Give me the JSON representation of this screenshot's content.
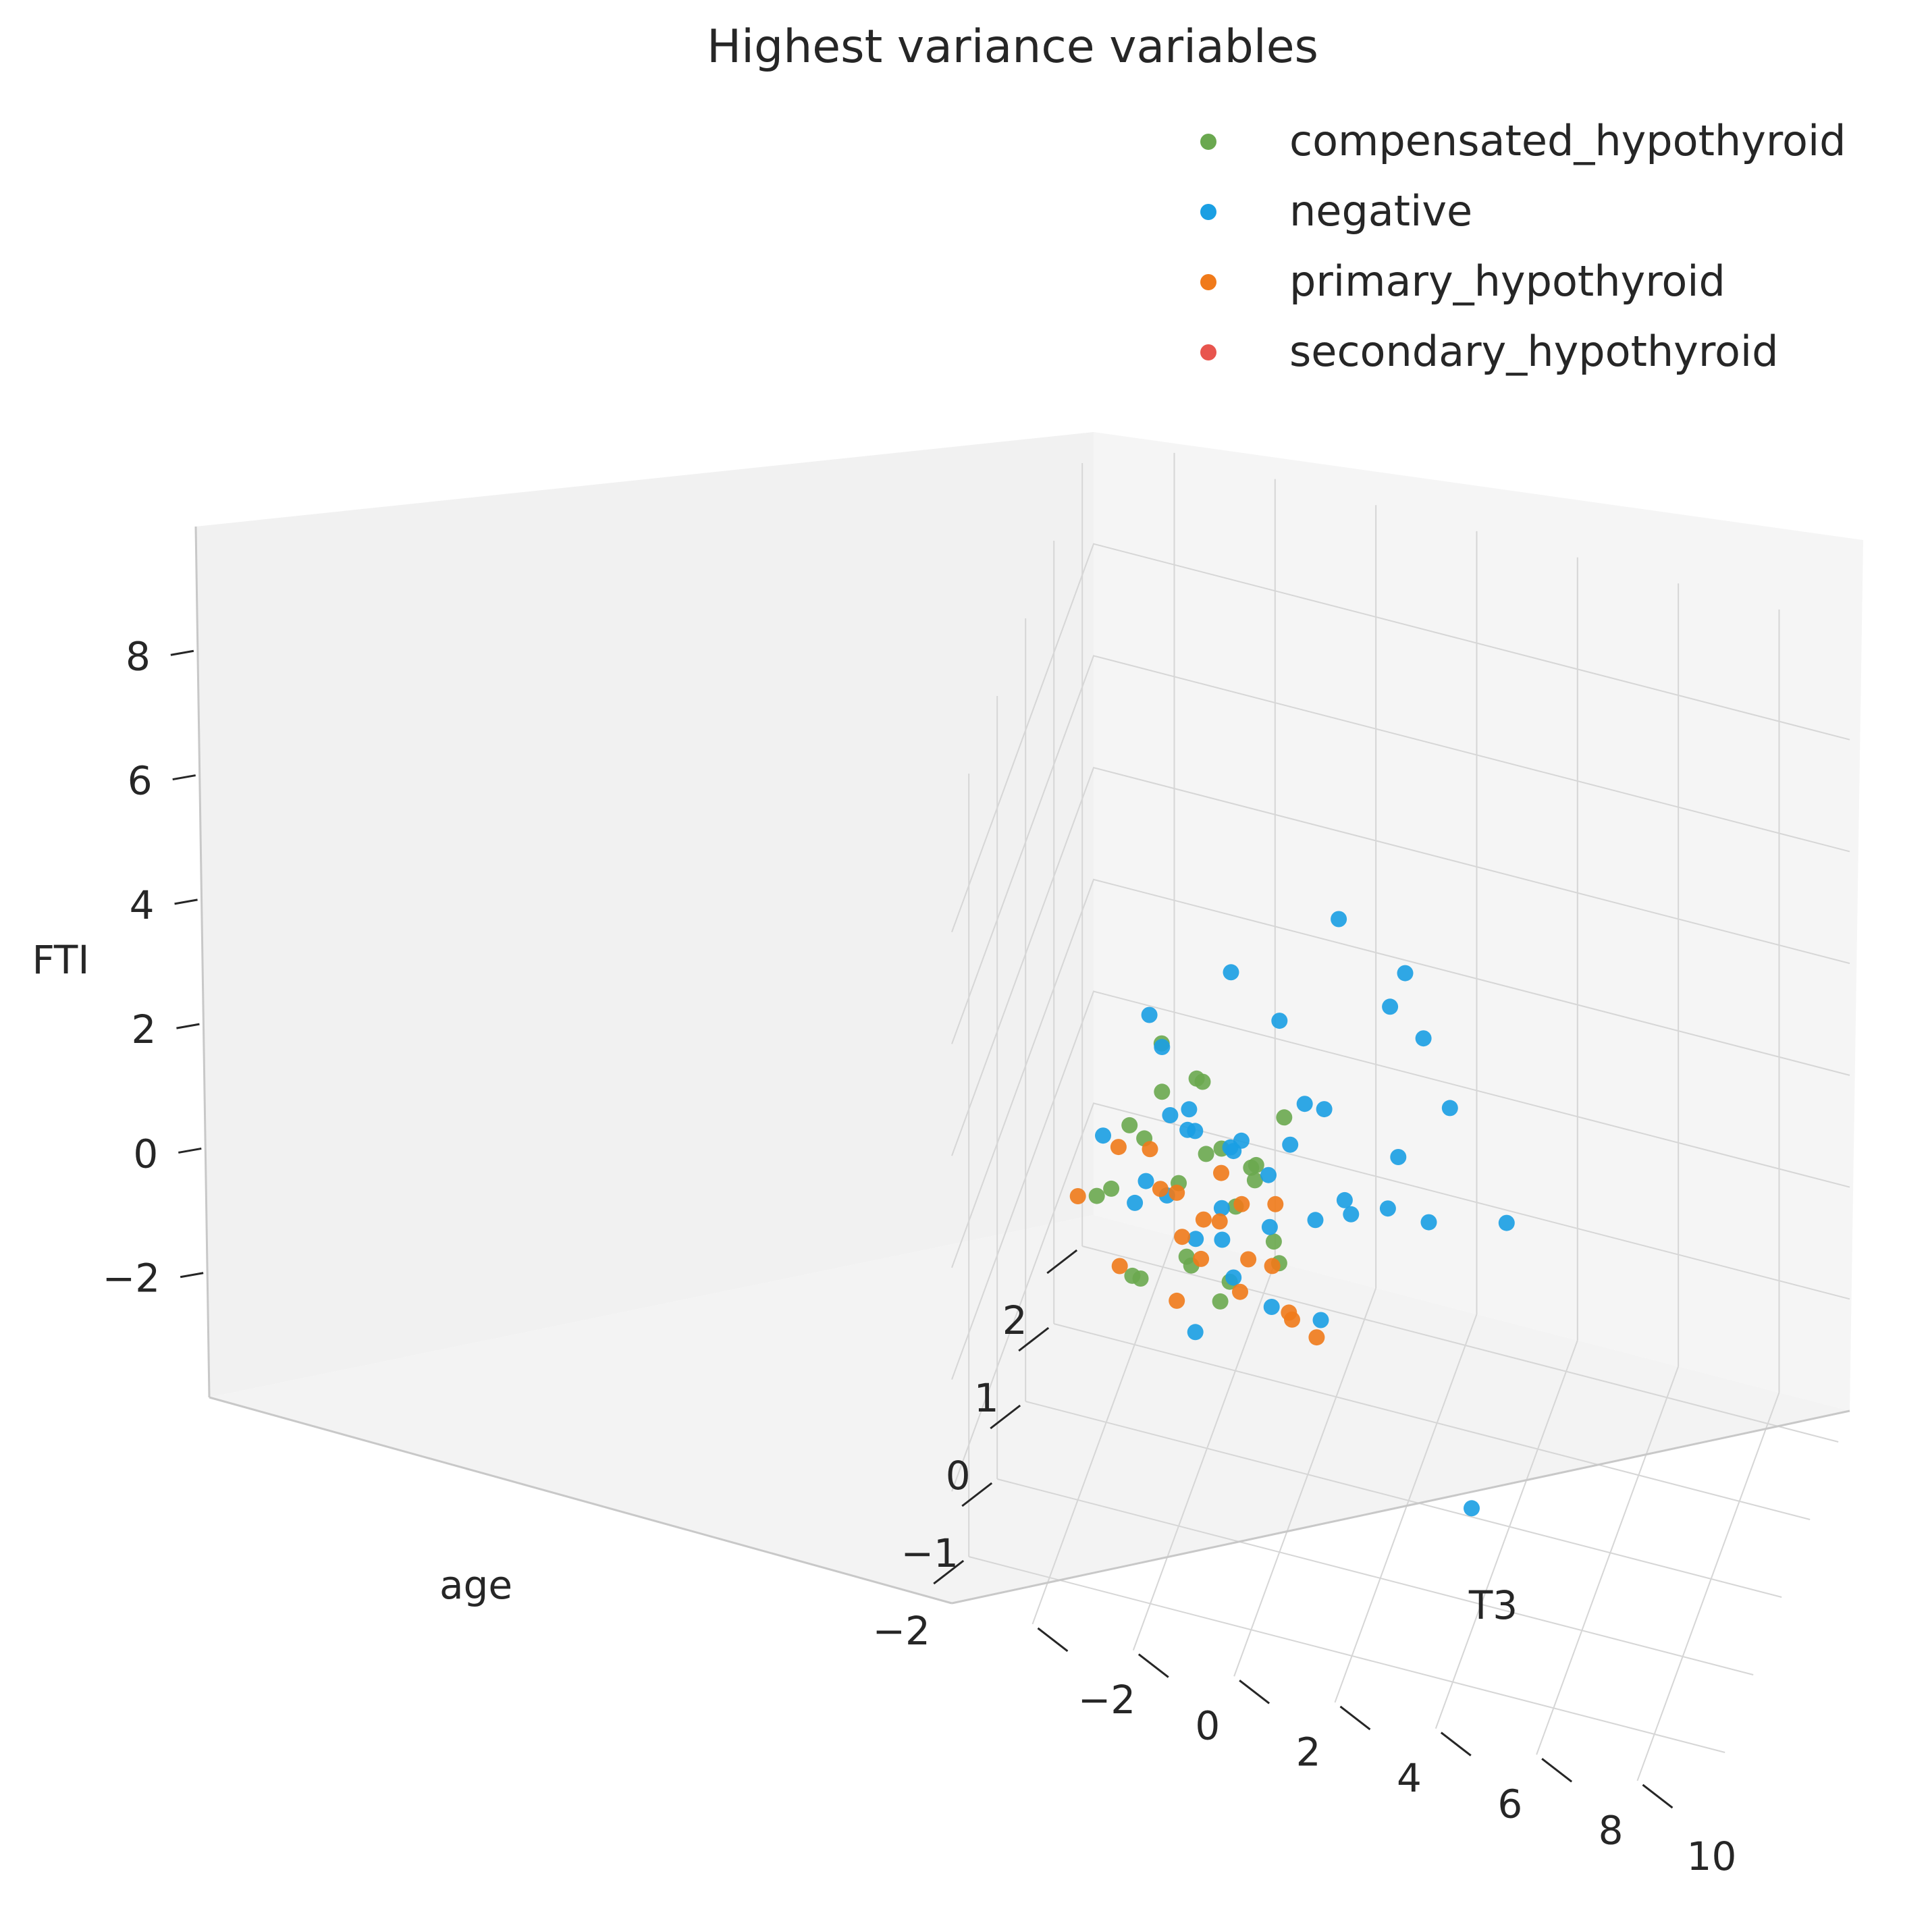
{
  "chart_data": {
    "type": "scatter",
    "projection": "3d",
    "title": "Highest variance variables",
    "xlabel": "age",
    "ylabel": "T3",
    "zlabel": "FTI",
    "xlim": [
      -2.6,
      2.4
    ],
    "ylim": [
      -3.6,
      11.4
    ],
    "zlim": [
      -4,
      10
    ],
    "x_ticks": [
      "−2",
      "−1",
      "0",
      "1",
      "2"
    ],
    "y_ticks": [
      "−2",
      "0",
      "2",
      "4",
      "6",
      "8",
      "10"
    ],
    "z_ticks": [
      "−2",
      "0",
      "2",
      "4",
      "6",
      "8"
    ],
    "grid": true,
    "legend_position": "top-right",
    "series": [
      {
        "name": "compensated_hypothyroid",
        "color": "#6aa84f",
        "points": [
          [
            -0.4,
            1.2,
            1.9
          ],
          [
            0.8,
            0.5,
            -0.2
          ],
          [
            1.4,
            -0.5,
            -0.7
          ],
          [
            0.1,
            -1.3,
            1.1
          ],
          [
            -0.8,
            0.9,
            0.3
          ],
          [
            0.6,
            -0.9,
            -0.3
          ],
          [
            1.6,
            -1.8,
            0.6
          ],
          [
            -0.2,
            -0.2,
            -0.5
          ],
          [
            0.3,
            0.4,
            0.0
          ],
          [
            -1.1,
            -0.7,
            0.4
          ],
          [
            0.9,
            -1.4,
            0.8
          ],
          [
            1.2,
            0.2,
            -0.6
          ],
          [
            0.0,
            -1.9,
            0.2
          ],
          [
            -0.6,
            0.6,
            -0.4
          ],
          [
            0.5,
            -0.3,
            0.5
          ],
          [
            1.0,
            -2.1,
            -0.1
          ],
          [
            -0.3,
            1.6,
            0.1
          ],
          [
            0.7,
            -0.6,
            1.5
          ],
          [
            1.8,
            -1.1,
            -0.2
          ],
          [
            -0.9,
            0.1,
            0.7
          ],
          [
            0.2,
            -2.3,
            -0.3
          ],
          [
            1.3,
            0.8,
            0.3
          ],
          [
            -0.5,
            -1.2,
            -0.5
          ],
          [
            0.4,
            1.1,
            -0.6
          ]
        ]
      },
      {
        "name": "negative",
        "color": "#1a9fe3",
        "points": [
          [
            -1.9,
            5.0,
            8.3
          ],
          [
            -1.4,
            3.4,
            8.2
          ],
          [
            -2.1,
            6.0,
            6.4
          ],
          [
            -0.9,
            4.8,
            5.7
          ],
          [
            -1.6,
            5.3,
            3.5
          ],
          [
            -1.7,
            6.9,
            4.0
          ],
          [
            -0.3,
            3.8,
            5.2
          ],
          [
            -1.0,
            2.0,
            5.5
          ],
          [
            1.2,
            -0.2,
            2.8
          ],
          [
            0.6,
            1.6,
            1.7
          ],
          [
            -2.4,
            6.6,
            -0.2
          ],
          [
            1.4,
            2.8,
            -1.0
          ],
          [
            2.3,
            2.5,
            -1.4
          ],
          [
            -1.2,
            1.2,
            1.0
          ],
          [
            0.9,
            -1.4,
            1.6
          ],
          [
            0.4,
            2.1,
            2.0
          ],
          [
            -0.6,
            0.8,
            2.4
          ],
          [
            1.7,
            -2.1,
            0.9
          ],
          [
            0.2,
            -0.5,
            1.3
          ],
          [
            -0.1,
            1.3,
            0.4
          ],
          [
            0.5,
            0.4,
            0.9
          ],
          [
            -0.8,
            2.6,
            1.8
          ],
          [
            1.0,
            -0.8,
            0.1
          ],
          [
            0.3,
            -1.6,
            -0.4
          ],
          [
            -1.5,
            3.1,
            1.1
          ],
          [
            0.7,
            -0.1,
            -0.7
          ],
          [
            1.5,
            -1.2,
            -0.3
          ],
          [
            -0.4,
            0.0,
            0.3
          ],
          [
            0.8,
            1.2,
            0.6
          ],
          [
            -0.2,
            -1.1,
            0.8
          ],
          [
            1.1,
            0.6,
            -0.5
          ],
          [
            -1.1,
            1.9,
            0.5
          ],
          [
            0.0,
            0.3,
            -0.2
          ],
          [
            1.9,
            -1.8,
            -1.1
          ],
          [
            -0.7,
            -0.4,
            1.4
          ],
          [
            0.6,
            -2.4,
            0.2
          ],
          [
            1.3,
            2.0,
            -0.9
          ],
          [
            -1.3,
            0.5,
            0.0
          ],
          [
            0.1,
            2.8,
            0.7
          ],
          [
            2.0,
            -0.6,
            -1.6
          ]
        ]
      },
      {
        "name": "primary_hypothyroid",
        "color": "#f07a1a",
        "points": [
          [
            0.5,
            -0.4,
            -1.4
          ],
          [
            0.9,
            -1.0,
            -1.7
          ],
          [
            1.3,
            -0.8,
            -1.9
          ],
          [
            0.1,
            0.6,
            -1.2
          ],
          [
            1.6,
            -1.5,
            -2.0
          ],
          [
            0.7,
            0.9,
            -1.5
          ],
          [
            1.9,
            -2.2,
            -1.8
          ],
          [
            0.3,
            -1.9,
            -1.6
          ],
          [
            1.1,
            0.2,
            -2.1
          ],
          [
            -0.2,
            1.8,
            -1.0
          ],
          [
            1.5,
            -2.6,
            -1.3
          ],
          [
            0.8,
            -0.2,
            -1.1
          ],
          [
            2.1,
            -0.9,
            -2.2
          ],
          [
            0.4,
            1.4,
            -1.8
          ],
          [
            1.2,
            -1.6,
            -1.4
          ],
          [
            0.0,
            -0.6,
            -1.5
          ],
          [
            1.7,
            0.4,
            -1.9
          ],
          [
            0.6,
            -2.9,
            -1.0
          ],
          [
            -0.4,
            2.4,
            -0.9
          ],
          [
            1.4,
            -0.1,
            -1.6
          ]
        ]
      },
      {
        "name": "secondary_hypothyroid",
        "color": "#e8554e",
        "points": []
      }
    ]
  }
}
